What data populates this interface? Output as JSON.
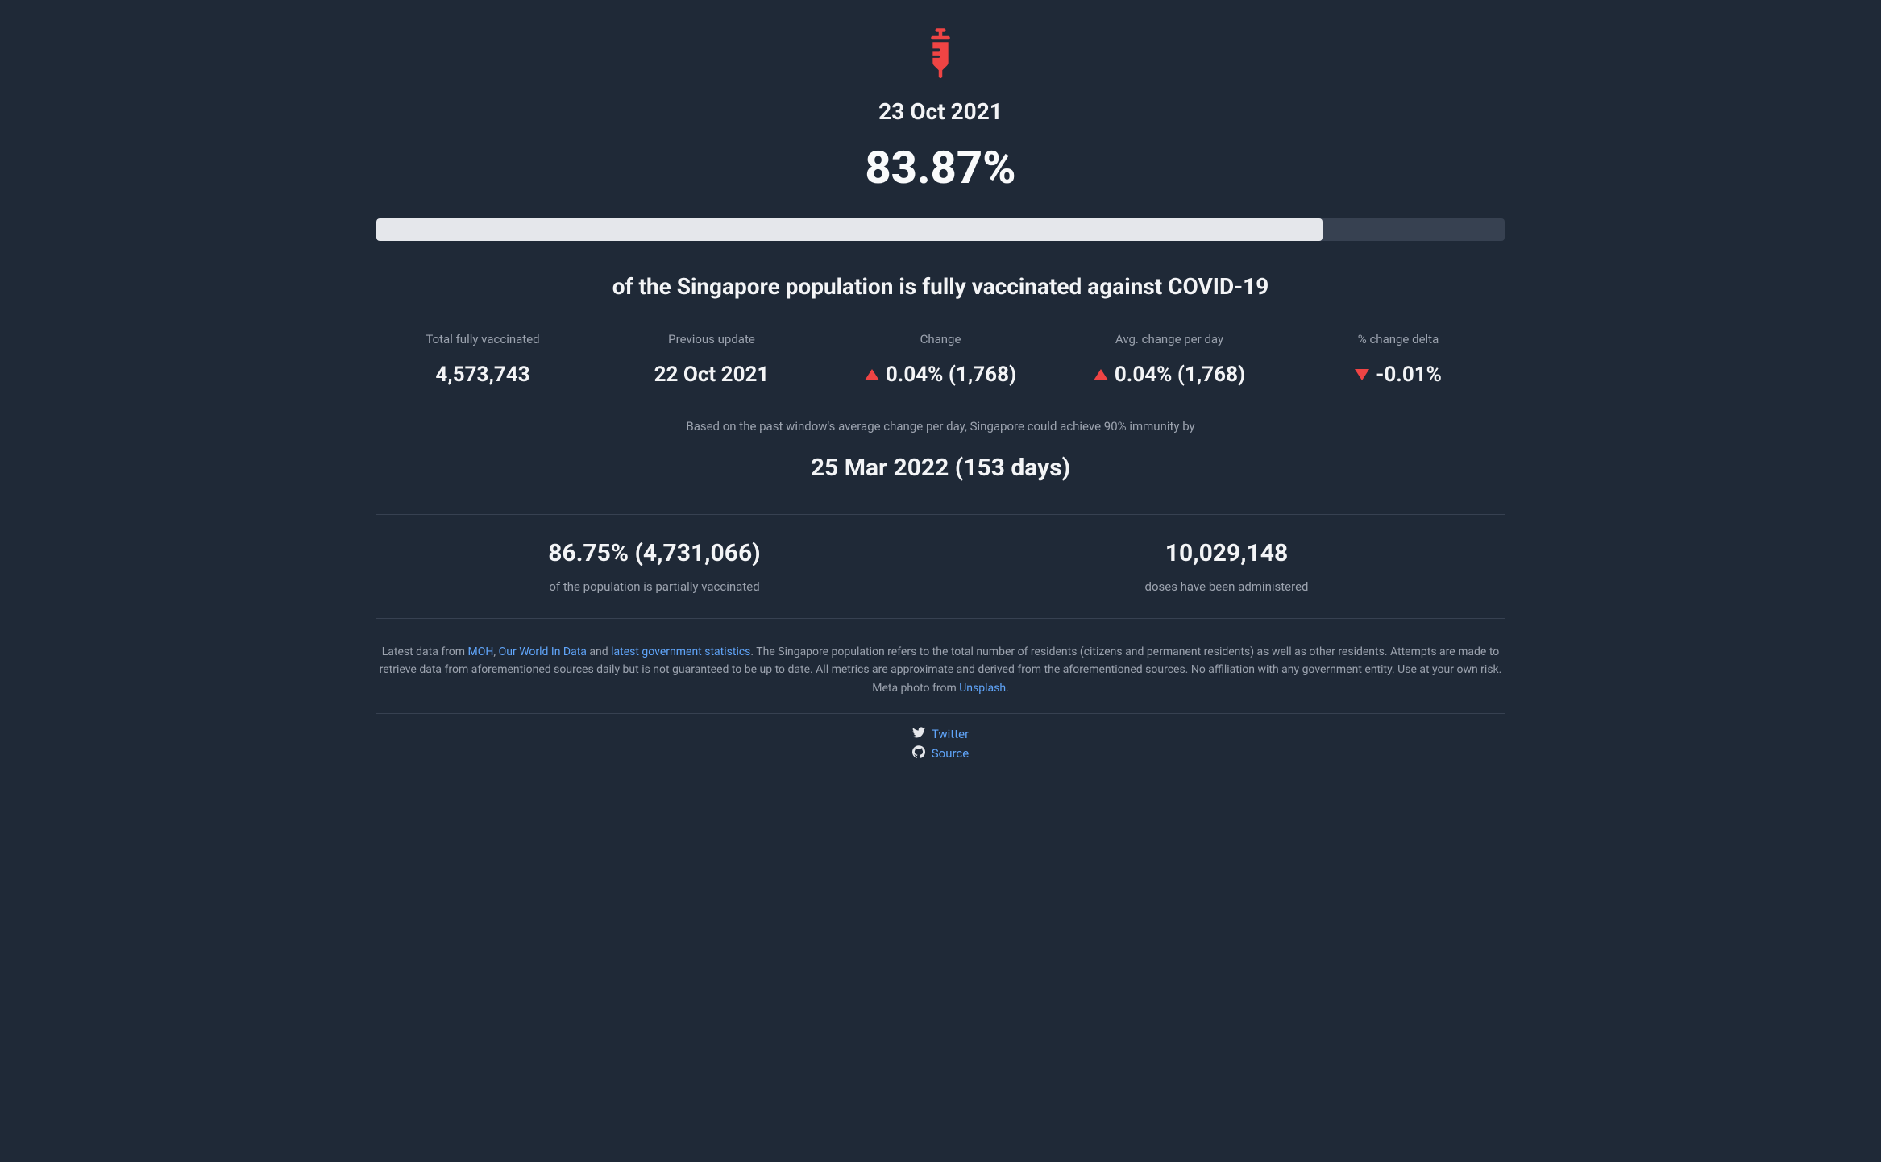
{
  "header": {
    "date": "23 Oct 2021",
    "percentage": "83.87%",
    "progress_percent": 83.87
  },
  "subtitle": "of the Singapore population is fully vaccinated against COVID-19",
  "stats": [
    {
      "label": "Total fully vaccinated",
      "value": "4,573,743",
      "indicator": "none"
    },
    {
      "label": "Previous update",
      "value": "22 Oct 2021",
      "indicator": "none"
    },
    {
      "label": "Change",
      "value": "0.04% (1,768)",
      "indicator": "up"
    },
    {
      "label": "Avg. change per day",
      "value": "0.04% (1,768)",
      "indicator": "up"
    },
    {
      "label": "% change delta",
      "value": "-0.01%",
      "indicator": "down"
    }
  ],
  "prediction": {
    "text": "Based on the past window's average change per day, Singapore could achieve 90% immunity by",
    "date": "25 Mar 2022 (153 days)"
  },
  "secondary_stats": [
    {
      "value": "86.75% (4,731,066)",
      "label": "of the population is partially vaccinated"
    },
    {
      "value": "10,029,148",
      "label": "doses have been administered"
    }
  ],
  "disclaimer": {
    "prefix": "Latest data from ",
    "link1": "MOH",
    "sep1": ", ",
    "link2": "Our World In Data",
    "sep2": " and ",
    "link3": "latest government statistics",
    "middle": ". The Singapore population refers to the total number of residents (citizens and permanent residents) as well as other residents. Attempts are made to retrieve data from aforementioned sources daily but is not guaranteed to be up to date. All metrics are approximate and derived from the aforementioned sources. No affiliation with any government entity. Use at your own risk. Meta photo from ",
    "link4": "Unsplash",
    "suffix": "."
  },
  "footer": {
    "twitter": "Twitter",
    "source": "Source"
  },
  "colors": {
    "background": "#1f2937",
    "text_primary": "#f3f4f6",
    "text_secondary": "#9ca3af",
    "accent": "#ef4444",
    "link": "#60a5fa",
    "progress_bg": "#374151",
    "progress_fill": "#e5e7eb"
  }
}
